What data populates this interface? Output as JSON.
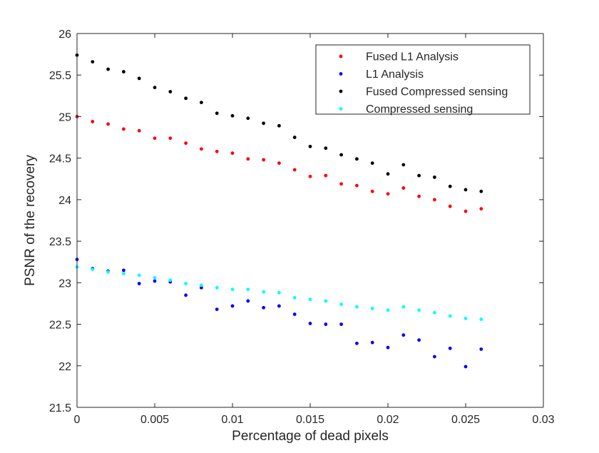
{
  "chart_data": {
    "type": "scatter",
    "title": "",
    "xlabel": "Percentage of dead pixels",
    "ylabel": "PSNR of the recovery",
    "xlim": [
      0,
      0.03
    ],
    "ylim": [
      21.5,
      26
    ],
    "grid": false,
    "legend_position": "top-right",
    "x_ticks": [
      0,
      0.005,
      0.01,
      0.015,
      0.02,
      0.025,
      0.03
    ],
    "x_tick_labels": [
      "0",
      "0.005",
      "0.01",
      "0.015",
      "0.02",
      "0.025",
      "0.03"
    ],
    "y_ticks": [
      21.5,
      22,
      22.5,
      23,
      23.5,
      24,
      24.5,
      25,
      25.5,
      26
    ],
    "y_tick_labels": [
      "21.5",
      "22",
      "22.5",
      "23",
      "23.5",
      "24",
      "24.5",
      "25",
      "25.5",
      "26"
    ],
    "x": [
      0,
      0.001,
      0.002,
      0.003,
      0.004,
      0.005,
      0.006,
      0.007,
      0.008,
      0.009,
      0.01,
      0.011,
      0.012,
      0.013,
      0.014,
      0.015,
      0.016,
      0.017,
      0.018,
      0.019,
      0.02,
      0.021,
      0.022,
      0.023,
      0.024,
      0.025,
      0.026
    ],
    "series": [
      {
        "name": "Fused L1 Analysis",
        "color": "#ff0000",
        "values": [
          25.0,
          24.94,
          24.91,
          24.85,
          24.83,
          24.74,
          24.74,
          24.68,
          24.61,
          24.58,
          24.56,
          24.49,
          24.48,
          24.44,
          24.36,
          24.28,
          24.29,
          24.19,
          24.17,
          24.1,
          24.07,
          24.14,
          24.04,
          24.0,
          23.92,
          23.86,
          23.89
        ]
      },
      {
        "name": "L1 Analysis",
        "color": "#0000ff",
        "values": [
          23.28,
          23.17,
          23.14,
          23.15,
          22.99,
          23.02,
          23.01,
          22.85,
          22.94,
          22.68,
          22.72,
          22.78,
          22.7,
          22.72,
          22.62,
          22.51,
          22.5,
          22.5,
          22.27,
          22.28,
          22.22,
          22.37,
          22.31,
          22.11,
          22.21,
          21.99,
          22.2
        ]
      },
      {
        "name": "Fused Compressed sensing",
        "color": "#000000",
        "values": [
          25.74,
          25.66,
          25.57,
          25.54,
          25.46,
          25.35,
          25.3,
          25.22,
          25.17,
          25.04,
          25.01,
          24.98,
          24.92,
          24.89,
          24.75,
          24.64,
          24.62,
          24.54,
          24.49,
          24.44,
          24.31,
          24.42,
          24.29,
          24.27,
          24.16,
          24.12,
          24.1
        ]
      },
      {
        "name": "Compressed sensing",
        "color": "#00ffff",
        "values": [
          23.19,
          23.16,
          23.13,
          23.11,
          23.09,
          23.06,
          23.03,
          22.99,
          22.97,
          22.94,
          22.92,
          22.92,
          22.89,
          22.88,
          22.82,
          22.8,
          22.78,
          22.74,
          22.71,
          22.69,
          22.67,
          22.71,
          22.67,
          22.64,
          22.6,
          22.57,
          22.56
        ]
      }
    ]
  }
}
